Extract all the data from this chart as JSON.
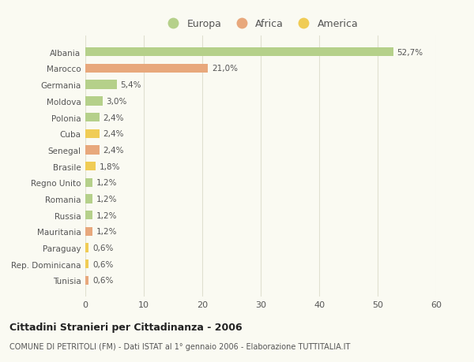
{
  "categories": [
    "Albania",
    "Marocco",
    "Germania",
    "Moldova",
    "Polonia",
    "Cuba",
    "Senegal",
    "Brasile",
    "Regno Unito",
    "Romania",
    "Russia",
    "Mauritania",
    "Paraguay",
    "Rep. Dominicana",
    "Tunisia"
  ],
  "values": [
    52.7,
    21.0,
    5.4,
    3.0,
    2.4,
    2.4,
    2.4,
    1.8,
    1.2,
    1.2,
    1.2,
    1.2,
    0.6,
    0.6,
    0.6
  ],
  "labels": [
    "52,7%",
    "21,0%",
    "5,4%",
    "3,0%",
    "2,4%",
    "2,4%",
    "2,4%",
    "1,8%",
    "1,2%",
    "1,2%",
    "1,2%",
    "1,2%",
    "0,6%",
    "0,6%",
    "0,6%"
  ],
  "continents": [
    "Europa",
    "Africa",
    "Europa",
    "Europa",
    "Europa",
    "America",
    "Africa",
    "America",
    "Europa",
    "Europa",
    "Europa",
    "Africa",
    "America",
    "America",
    "Africa"
  ],
  "colors": {
    "Europa": "#b5d08a",
    "Africa": "#e8a87c",
    "America": "#f0cc55"
  },
  "title_main": "Cittadini Stranieri per Cittadinanza - 2006",
  "title_sub": "COMUNE DI PETRITOLI (FM) - Dati ISTAT al 1° gennaio 2006 - Elaborazione TUTTITALIA.IT",
  "xlim": [
    0,
    60
  ],
  "xticks": [
    0,
    10,
    20,
    30,
    40,
    50,
    60
  ],
  "background_color": "#fafaf2",
  "bar_height": 0.55,
  "grid_color": "#e0e0d0",
  "text_color": "#555555",
  "legend_regions": [
    "Europa",
    "Africa",
    "America"
  ]
}
